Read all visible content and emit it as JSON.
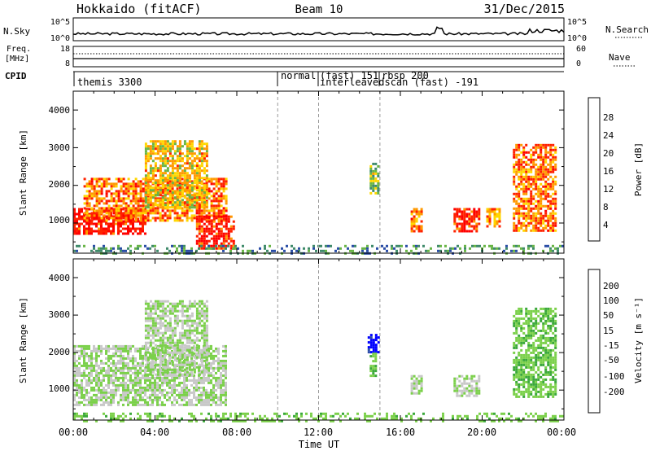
{
  "header": {
    "station": "Hokkaido (fitACF)",
    "beam": "Beam 10",
    "date": "31/Dec/2015"
  },
  "params": {
    "nsky_label": "N.Sky",
    "nsearch_label": "N.Search",
    "freq_label_1": "Freq.",
    "freq_label_2": "[MHz]",
    "nave_label": "Nave",
    "cpid_label": "CPID",
    "left_ticks_nsky": [
      "10^5",
      "10^0"
    ],
    "right_ticks_nsky": [
      "10^5",
      "10^0"
    ],
    "left_ticks_freq": [
      "18",
      "8"
    ],
    "right_ticks_nave": [
      "60",
      "0"
    ]
  },
  "cpid_segments": [
    {
      "label": "themis 3300",
      "start_hour": 0.0
    },
    {
      "label": "normal",
      "start_hour": 10.0
    },
    {
      "label": "(fast) 151",
      "start_hour": 12.0
    },
    {
      "label": "interleavedscan (fast) -191",
      "start_hour": 12.0
    },
    {
      "label": "rbsp 200",
      "start_hour": 15.0
    }
  ],
  "chart_data": [
    {
      "type": "heatmap",
      "panel": "power",
      "ylabel": "Slant Range [km]",
      "xlim": [
        0,
        24
      ],
      "ylim": [
        200,
        4500
      ],
      "yticks": [
        "1000",
        "2000",
        "3000",
        "4000"
      ],
      "colorbar": {
        "label": "Power [dB]",
        "ticks": [
          "4",
          "8",
          "12",
          "16",
          "20",
          "24",
          "28"
        ],
        "range": [
          0,
          30
        ],
        "colors": [
          "#0000ff",
          "#2a4da6",
          "#3f8a6a",
          "#68b545",
          "#ffd700",
          "#ff9900",
          "#ff2200",
          "#ff0000"
        ]
      },
      "regions": [
        {
          "t0": 0.0,
          "t1": 3.5,
          "r0": 700,
          "r1": 1400,
          "value": 27
        },
        {
          "t0": 0.5,
          "t1": 7.5,
          "r0": 1050,
          "r1": 2200,
          "value": 22
        },
        {
          "t0": 3.5,
          "t1": 6.5,
          "r0": 1400,
          "r1": 3200,
          "value": 18
        },
        {
          "t0": 6.0,
          "t1": 7.8,
          "r0": 300,
          "r1": 1200,
          "value": 26
        },
        {
          "t0": 14.5,
          "t1": 14.9,
          "r0": 1800,
          "r1": 2600,
          "value": 14
        },
        {
          "t0": 16.5,
          "t1": 17.0,
          "r0": 800,
          "r1": 1400,
          "value": 22
        },
        {
          "t0": 18.6,
          "t1": 19.8,
          "r0": 800,
          "r1": 1400,
          "value": 26
        },
        {
          "t0": 20.2,
          "t1": 20.8,
          "r0": 900,
          "r1": 1400,
          "value": 20
        },
        {
          "t0": 21.5,
          "t1": 23.6,
          "r0": 800,
          "r1": 3100,
          "value": 22
        },
        {
          "t0": 0.0,
          "t1": 24.0,
          "r0": 200,
          "r1": 420,
          "value": 10
        }
      ]
    },
    {
      "type": "heatmap",
      "panel": "velocity",
      "ylabel": "Slant Range [km]",
      "xlabel": "Time UT",
      "xlim": [
        0,
        24
      ],
      "ylim": [
        200,
        4500
      ],
      "yticks": [
        "1000",
        "2000",
        "3000",
        "4000"
      ],
      "xticks": [
        "00:00",
        "04:00",
        "08:00",
        "12:00",
        "16:00",
        "20:00",
        "00:00"
      ],
      "colorbar": {
        "label": "Velocity [m s⁻¹]",
        "ticks": [
          "200",
          "100",
          "50",
          "15",
          "-15",
          "-50",
          "-100",
          "-200"
        ],
        "range": [
          -250,
          250
        ],
        "colors": [
          "#ff0000",
          "#ff4400",
          "#ff8800",
          "#ffbb33",
          "#c8c8c8",
          "#7bd04a",
          "#3aa83a",
          "#3a7a8a",
          "#2a4da6",
          "#0000ff"
        ]
      },
      "regions": [
        {
          "t0": 0.0,
          "t1": 7.5,
          "r0": 600,
          "r1": 2200,
          "value": 0
        },
        {
          "t0": 3.5,
          "t1": 6.5,
          "r0": 1400,
          "r1": 3400,
          "value": 0
        },
        {
          "t0": 14.4,
          "t1": 14.9,
          "r0": 2000,
          "r1": 2500,
          "value": 220
        },
        {
          "t0": 14.5,
          "t1": 14.8,
          "r0": 1400,
          "r1": 2000,
          "value": 40
        },
        {
          "t0": 16.5,
          "t1": 17.0,
          "r0": 900,
          "r1": 1400,
          "value": 0
        },
        {
          "t0": 18.6,
          "t1": 19.8,
          "r0": 850,
          "r1": 1400,
          "value": 0
        },
        {
          "t0": 21.5,
          "t1": 23.6,
          "r0": 800,
          "r1": 3200,
          "value": 40
        },
        {
          "t0": 0.0,
          "t1": 24.0,
          "r0": 200,
          "r1": 400,
          "value": 30
        }
      ]
    }
  ]
}
